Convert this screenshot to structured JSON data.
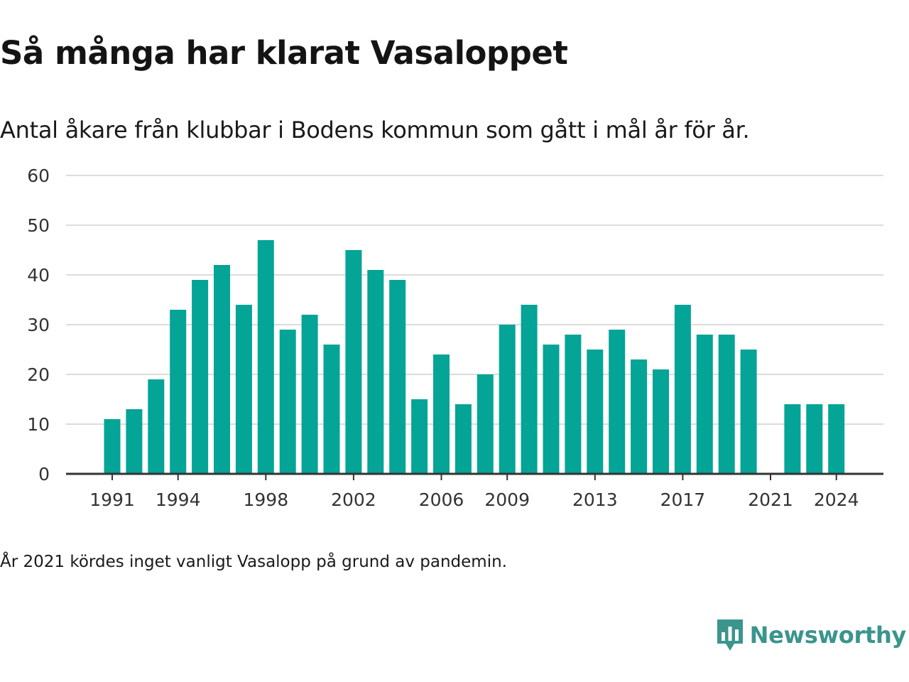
{
  "header": {
    "title": "Så många har klarat Vasaloppet",
    "subtitle": "Antal åkare från klubbar i Bodens kommun som gått i mål år för år."
  },
  "footer": {
    "note": "År 2021 kördes inget vanligt Vasalopp på grund av pandemin.",
    "brand": "Newsworthy",
    "brand_icon": "newsworthy-logo-icon"
  },
  "colors": {
    "bar": "#04a497",
    "grid": "#dcdcdc",
    "axis": "#333333",
    "brand": "#3a958c"
  },
  "chart_data": {
    "type": "bar",
    "title": "Så många har klarat Vasaloppet",
    "subtitle": "Antal åkare från klubbar i Bodens kommun som gått i mål år för år.",
    "xlabel": "",
    "ylabel": "",
    "ylim": [
      0,
      60
    ],
    "yticks": [
      0,
      10,
      20,
      30,
      40,
      50,
      60
    ],
    "xticks": [
      1991,
      1994,
      1998,
      2002,
      2006,
      2009,
      2013,
      2017,
      2021,
      2024
    ],
    "grid": true,
    "categories": [
      1991,
      1992,
      1993,
      1994,
      1995,
      1996,
      1997,
      1998,
      1999,
      2000,
      2001,
      2002,
      2003,
      2004,
      2005,
      2006,
      2007,
      2008,
      2009,
      2010,
      2011,
      2012,
      2013,
      2014,
      2015,
      2016,
      2017,
      2018,
      2019,
      2020,
      2021,
      2022,
      2023,
      2024
    ],
    "values": [
      11,
      13,
      19,
      33,
      39,
      42,
      34,
      47,
      29,
      32,
      26,
      45,
      41,
      39,
      15,
      24,
      14,
      20,
      30,
      34,
      26,
      28,
      25,
      29,
      23,
      21,
      34,
      28,
      28,
      25,
      null,
      14,
      14,
      14
    ],
    "annotations": [
      "År 2021 kördes inget vanligt Vasalopp på grund av pandemin."
    ]
  }
}
